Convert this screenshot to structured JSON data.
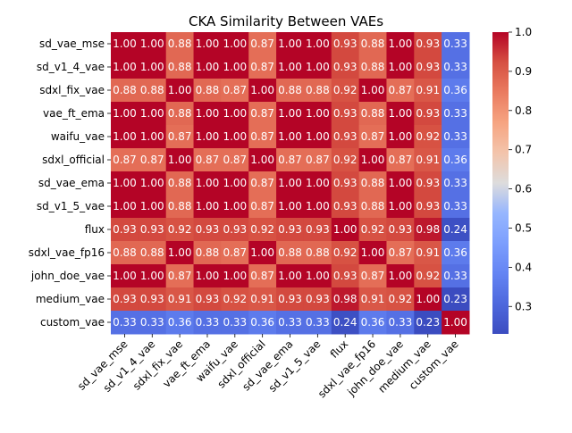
{
  "chart_data": {
    "type": "heatmap",
    "title": "CKA Similarity Between VAEs",
    "xlabel": "",
    "ylabel": "",
    "labels": [
      "sd_vae_mse",
      "sd_v1_4_vae",
      "sdxl_fix_vae",
      "vae_ft_ema",
      "waifu_vae",
      "sdxl_official",
      "sd_vae_ema",
      "sd_v1_5_vae",
      "flux",
      "sdxl_vae_fp16",
      "john_doe_vae",
      "medium_vae",
      "custom_vae"
    ],
    "matrix": [
      [
        1.0,
        1.0,
        0.88,
        1.0,
        1.0,
        0.87,
        1.0,
        1.0,
        0.93,
        0.88,
        1.0,
        0.93,
        0.33
      ],
      [
        1.0,
        1.0,
        0.88,
        1.0,
        1.0,
        0.87,
        1.0,
        1.0,
        0.93,
        0.88,
        1.0,
        0.93,
        0.33
      ],
      [
        0.88,
        0.88,
        1.0,
        0.88,
        0.87,
        1.0,
        0.88,
        0.88,
        0.92,
        1.0,
        0.87,
        0.91,
        0.36
      ],
      [
        1.0,
        1.0,
        0.88,
        1.0,
        1.0,
        0.87,
        1.0,
        1.0,
        0.93,
        0.88,
        1.0,
        0.93,
        0.33
      ],
      [
        1.0,
        1.0,
        0.87,
        1.0,
        1.0,
        0.87,
        1.0,
        1.0,
        0.93,
        0.87,
        1.0,
        0.92,
        0.33
      ],
      [
        0.87,
        0.87,
        1.0,
        0.87,
        0.87,
        1.0,
        0.87,
        0.87,
        0.92,
        1.0,
        0.87,
        0.91,
        0.36
      ],
      [
        1.0,
        1.0,
        0.88,
        1.0,
        1.0,
        0.87,
        1.0,
        1.0,
        0.93,
        0.88,
        1.0,
        0.93,
        0.33
      ],
      [
        1.0,
        1.0,
        0.88,
        1.0,
        1.0,
        0.87,
        1.0,
        1.0,
        0.93,
        0.88,
        1.0,
        0.93,
        0.33
      ],
      [
        0.93,
        0.93,
        0.92,
        0.93,
        0.93,
        0.92,
        0.93,
        0.93,
        1.0,
        0.92,
        0.93,
        0.98,
        0.24
      ],
      [
        0.88,
        0.88,
        1.0,
        0.88,
        0.87,
        1.0,
        0.88,
        0.88,
        0.92,
        1.0,
        0.87,
        0.91,
        0.36
      ],
      [
        1.0,
        1.0,
        0.87,
        1.0,
        1.0,
        0.87,
        1.0,
        1.0,
        0.93,
        0.87,
        1.0,
        0.92,
        0.33
      ],
      [
        0.93,
        0.93,
        0.91,
        0.93,
        0.92,
        0.91,
        0.93,
        0.93,
        0.98,
        0.91,
        0.92,
        1.0,
        0.23
      ],
      [
        0.33,
        0.33,
        0.36,
        0.33,
        0.33,
        0.36,
        0.33,
        0.33,
        0.24,
        0.36,
        0.33,
        0.23,
        1.0
      ]
    ],
    "value_range": [
      0.23,
      1.0
    ],
    "colormap": "coolwarm",
    "colorbar_ticks": [
      "0.3",
      "0.4",
      "0.5",
      "0.6",
      "0.7",
      "0.8",
      "0.9",
      "1.0"
    ],
    "annotations_format": "2 decimals",
    "grid": false,
    "legend": "colorbar-right"
  }
}
